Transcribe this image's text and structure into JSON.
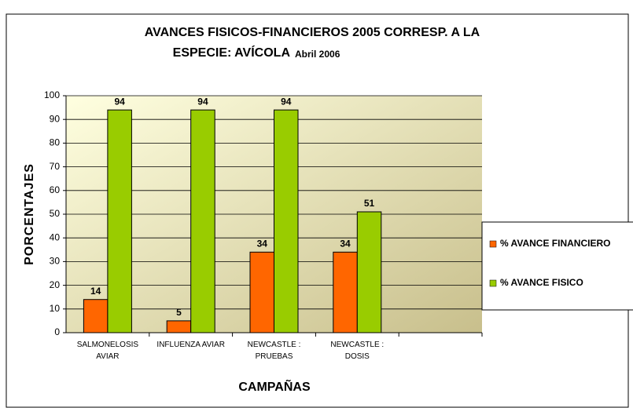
{
  "chart_data": {
    "type": "bar",
    "title": "AVANCES FISICOS-FINANCIEROS 2005 CORRESP. A LA",
    "title_line2": "ESPECIE: AVÍCOLA",
    "subtitle": "Abril 2006",
    "x_label": "CAMPAÑAS",
    "y_label": "PORCENTAJES",
    "categories": [
      "SALMONELOSIS AVIAR",
      "INFLUENZA AVIAR",
      "NEWCASTLE : PRUEBAS",
      "NEWCASTLE : DOSIS",
      null
    ],
    "series": [
      {
        "name": "% AVANCE FINANCIERO",
        "color": "#ff6600",
        "values": [
          14,
          5,
          34,
          34,
          null
        ]
      },
      {
        "name": "% AVANCE FISICO",
        "color": "#99cc00",
        "values": [
          94,
          94,
          94,
          51,
          null
        ]
      }
    ],
    "ylim": [
      0,
      100
    ],
    "yticks": [
      0,
      10,
      20,
      30,
      40,
      50,
      60,
      70,
      80,
      90,
      100
    ],
    "grid": true,
    "legend": "right"
  }
}
